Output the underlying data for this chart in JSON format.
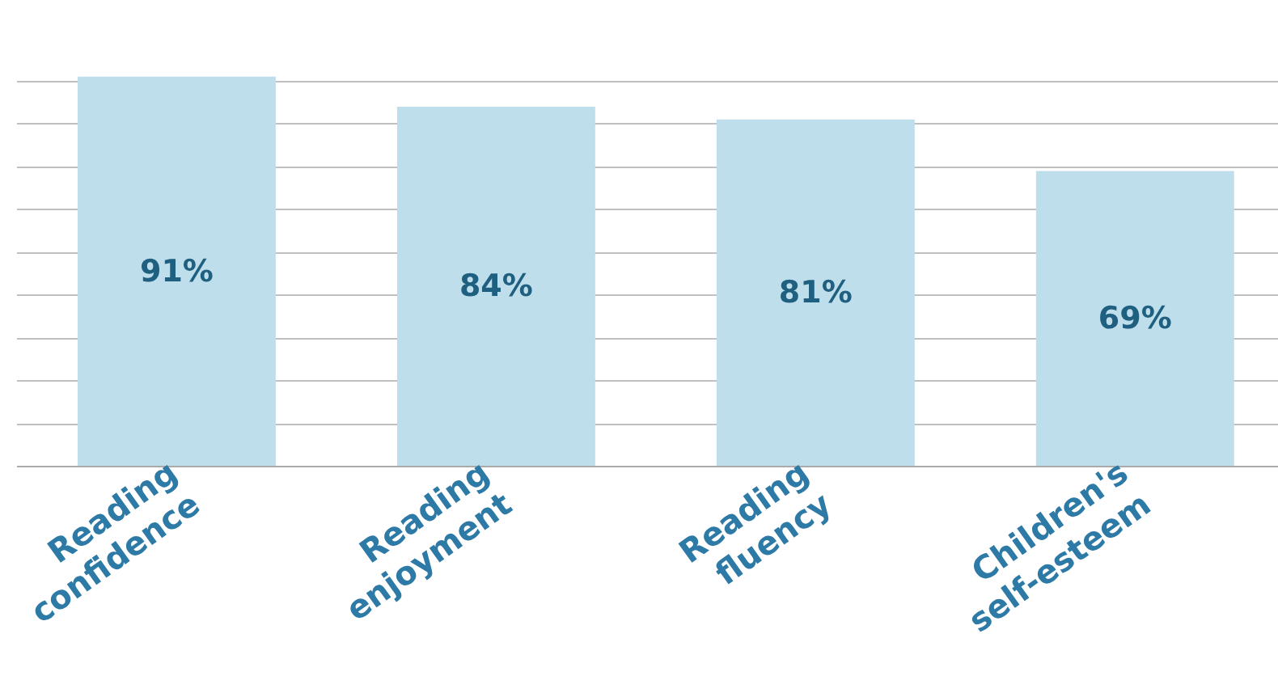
{
  "chart_data": {
    "type": "bar",
    "categories": [
      "Reading\nconfidence",
      "Reading\nenjoyment",
      "Reading\nfluency",
      "Children's\nself-esteem"
    ],
    "values": [
      91,
      84,
      81,
      69
    ],
    "color": "#bfdeeb",
    "data_labels": true,
    "value_labels": [
      "91%",
      "84%",
      "81%",
      "69%"
    ],
    "yticks": [
      {
        "value": 0,
        "label": null
      },
      {
        "value": 10,
        "label": null
      },
      {
        "value": 20,
        "label": null
      },
      {
        "value": 30,
        "label": null
      },
      {
        "value": 40,
        "label": null
      },
      {
        "value": 50,
        "label": null
      },
      {
        "value": 60,
        "label": null
      },
      {
        "value": 70,
        "label": null
      },
      {
        "value": 80,
        "label": null
      },
      {
        "value": 90,
        "label": null
      }
    ],
    "grid": "y",
    "tick_labels": "x"
  }
}
